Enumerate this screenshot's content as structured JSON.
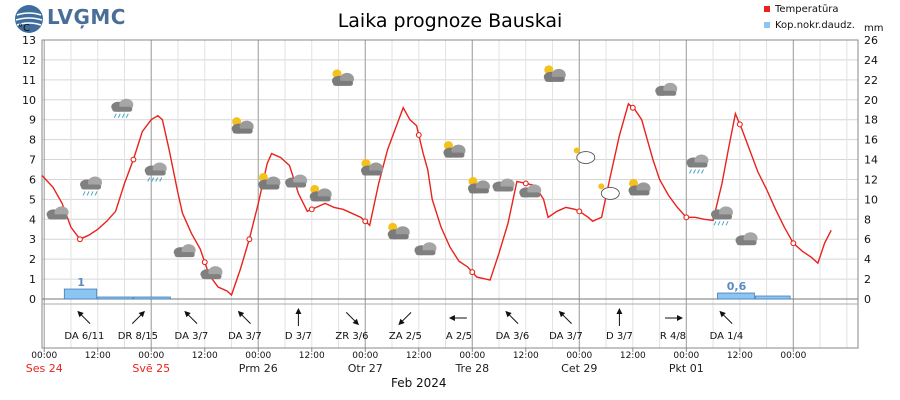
{
  "logo_text": "LVĢMC",
  "chart_data": {
    "type": "line",
    "title": "Laika prognoze Bauskai",
    "left_unit": "°C",
    "right_unit": "mm",
    "y_left": {
      "min": 0,
      "max": 13,
      "ticks": [
        "0",
        "1",
        "2",
        "3",
        "4",
        "5",
        "6",
        "7",
        "8",
        "9",
        "10",
        "11",
        "12",
        "13"
      ]
    },
    "y_right": {
      "min": 0,
      "max": 26,
      "ticks": [
        "0",
        "2",
        "4",
        "6",
        "8",
        "10",
        "12",
        "14",
        "16",
        "18",
        "20",
        "22",
        "24",
        "26"
      ]
    },
    "legend": [
      {
        "name": "Temperatūra",
        "color": "#e8231d"
      },
      {
        "name": "Kop.nokr.daudz.",
        "color": "#8cc4f2"
      }
    ],
    "legend_position": "top-right",
    "grid": true,
    "time_axis": {
      "start_hour": -0.5,
      "end_hour": 182.5,
      "hour_labels": [
        {
          "h": 0,
          "text": "00:00"
        },
        {
          "h": 12,
          "text": "12:00"
        },
        {
          "h": 24,
          "text": "00:00"
        },
        {
          "h": 36,
          "text": "12:00"
        },
        {
          "h": 48,
          "text": "00:00"
        },
        {
          "h": 60,
          "text": "12:00"
        },
        {
          "h": 72,
          "text": "00:00"
        },
        {
          "h": 84,
          "text": "12:00"
        },
        {
          "h": 96,
          "text": "00:00"
        },
        {
          "h": 108,
          "text": "12:00"
        },
        {
          "h": 120,
          "text": "00:00"
        },
        {
          "h": 132,
          "text": "12:00"
        },
        {
          "h": 144,
          "text": "00:00"
        },
        {
          "h": 156,
          "text": "12:00"
        },
        {
          "h": 168,
          "text": "00:00"
        }
      ],
      "day_labels": [
        {
          "h": 0,
          "text": "Ses 24",
          "color": "#e8231d"
        },
        {
          "h": 24,
          "text": "Svē 25",
          "color": "#e8231d"
        },
        {
          "h": 48,
          "text": "Prm 26",
          "color": "#222222"
        },
        {
          "h": 72,
          "text": "Otr 27",
          "color": "#222222"
        },
        {
          "h": 96,
          "text": "Tre 28",
          "color": "#222222"
        },
        {
          "h": 120,
          "text": "Cet 29",
          "color": "#222222"
        },
        {
          "h": 144,
          "text": "Pkt 01",
          "color": "#222222"
        }
      ],
      "month_label": "Feb 2024"
    },
    "temperature": {
      "name": "Temperatūra",
      "points": [
        [
          -0.5,
          6.2
        ],
        [
          2,
          5.6
        ],
        [
          4,
          4.8
        ],
        [
          6,
          3.6
        ],
        [
          8,
          3.0
        ],
        [
          10,
          3.2
        ],
        [
          12,
          3.5
        ],
        [
          14,
          3.9
        ],
        [
          16,
          4.4
        ],
        [
          18,
          5.8
        ],
        [
          20,
          7.0
        ],
        [
          22,
          8.4
        ],
        [
          24,
          9.0
        ],
        [
          25.5,
          9.2
        ],
        [
          26.5,
          9.0
        ],
        [
          28,
          7.5
        ],
        [
          30,
          5.3
        ],
        [
          31,
          4.3
        ],
        [
          33,
          3.3
        ],
        [
          35,
          2.5
        ],
        [
          37,
          1.2
        ],
        [
          39,
          0.6
        ],
        [
          41,
          0.4
        ],
        [
          42,
          0.2
        ],
        [
          44,
          1.5
        ],
        [
          46,
          3.0
        ],
        [
          48,
          4.8
        ],
        [
          50,
          6.8
        ],
        [
          51,
          7.3
        ],
        [
          53,
          7.1
        ],
        [
          55,
          6.7
        ],
        [
          57,
          5.3
        ],
        [
          59,
          4.4
        ],
        [
          61,
          4.6
        ],
        [
          63,
          4.8
        ],
        [
          65,
          4.6
        ],
        [
          67,
          4.5
        ],
        [
          69,
          4.3
        ],
        [
          71,
          4.1
        ],
        [
          72,
          3.9
        ],
        [
          73,
          3.7
        ],
        [
          75,
          5.8
        ],
        [
          77,
          7.5
        ],
        [
          79,
          8.7
        ],
        [
          80.5,
          9.6
        ],
        [
          82,
          9.0
        ],
        [
          83.5,
          8.7
        ],
        [
          85,
          7.3
        ],
        [
          86,
          6.5
        ],
        [
          87,
          5.0
        ],
        [
          89,
          3.6
        ],
        [
          91,
          2.6
        ],
        [
          93,
          1.9
        ],
        [
          95,
          1.6
        ],
        [
          97,
          1.1
        ],
        [
          99,
          1.0
        ],
        [
          100,
          0.95
        ],
        [
          102,
          2.3
        ],
        [
          104,
          3.8
        ],
        [
          106,
          5.9
        ],
        [
          108,
          5.8
        ],
        [
          110,
          5.7
        ],
        [
          112,
          5.0
        ],
        [
          113,
          4.1
        ],
        [
          115,
          4.4
        ],
        [
          117,
          4.6
        ],
        [
          119,
          4.5
        ],
        [
          120,
          4.4
        ],
        [
          122,
          4.1
        ],
        [
          123,
          3.9
        ],
        [
          124,
          4.0
        ],
        [
          125,
          4.1
        ],
        [
          127,
          6.2
        ],
        [
          129,
          8.2
        ],
        [
          131,
          9.8
        ],
        [
          132.5,
          9.5
        ],
        [
          134,
          9.0
        ],
        [
          135.5,
          7.8
        ],
        [
          136.5,
          7.0
        ],
        [
          138,
          6.0
        ],
        [
          140,
          5.2
        ],
        [
          142,
          4.6
        ],
        [
          144,
          4.1
        ],
        [
          146,
          4.1
        ],
        [
          148,
          4.0
        ],
        [
          150,
          3.95
        ],
        [
          152,
          5.8
        ],
        [
          153.5,
          7.6
        ],
        [
          155,
          9.3
        ],
        [
          156.5,
          8.5
        ],
        [
          158,
          7.6
        ],
        [
          160,
          6.4
        ],
        [
          162,
          5.5
        ],
        [
          164,
          4.5
        ],
        [
          166,
          3.6
        ],
        [
          168,
          2.8
        ],
        [
          170,
          2.4
        ],
        [
          172,
          2.1
        ],
        [
          173.5,
          1.8
        ],
        [
          175,
          2.8
        ],
        [
          176.5,
          3.45
        ]
      ],
      "markers": [
        8,
        20,
        36,
        46,
        60,
        72,
        84,
        96,
        108,
        120,
        132,
        144,
        156,
        168
      ],
      "color": "#e8231d"
    },
    "precipitation": {
      "name": "Kop.nokr.daudz.",
      "bars": [
        {
          "h0": 4.5,
          "h1": 12,
          "mm": 1.0,
          "label": "1"
        },
        {
          "h0": 12,
          "h1": 20,
          "mm": 0.2,
          "label": ""
        },
        {
          "h0": 20,
          "h1": 28.5,
          "mm": 0.2,
          "label": ""
        },
        {
          "h0": 151,
          "h1": 159.5,
          "mm": 0.6,
          "label": "0,6"
        },
        {
          "h0": 159.5,
          "h1": 167.5,
          "mm": 0.3,
          "label": ""
        }
      ],
      "color": "#8cc4f2"
    },
    "weather_icons": [
      {
        "h": 3.0,
        "t": 4.3,
        "icon": "cloudy"
      },
      {
        "h": 10.5,
        "t": 5.8,
        "icon": "cloud-rain"
      },
      {
        "h": 17.5,
        "t": 9.7,
        "icon": "cloud-rain"
      },
      {
        "h": 25.0,
        "t": 6.5,
        "icon": "cloud-rain"
      },
      {
        "h": 31.5,
        "t": 2.4,
        "icon": "cloudy"
      },
      {
        "h": 37.5,
        "t": 1.3,
        "icon": "cloudy"
      },
      {
        "h": 44.5,
        "t": 8.6,
        "icon": "partly-sunny"
      },
      {
        "h": 50.5,
        "t": 5.8,
        "icon": "partly-sunny"
      },
      {
        "h": 56.5,
        "t": 5.9,
        "icon": "cloudy"
      },
      {
        "h": 62.0,
        "t": 5.2,
        "icon": "partly-sunny"
      },
      {
        "h": 67.0,
        "t": 11.0,
        "icon": "partly-sunny"
      },
      {
        "h": 73.5,
        "t": 6.5,
        "icon": "partly-sunny"
      },
      {
        "h": 79.5,
        "t": 3.3,
        "icon": "partly-sunny"
      },
      {
        "h": 85.5,
        "t": 2.5,
        "icon": "cloudy"
      },
      {
        "h": 92.0,
        "t": 7.4,
        "icon": "partly-sunny"
      },
      {
        "h": 97.5,
        "t": 5.6,
        "icon": "partly-sunny"
      },
      {
        "h": 103.0,
        "t": 5.7,
        "icon": "cloudy"
      },
      {
        "h": 109.0,
        "t": 5.4,
        "icon": "cloudy"
      },
      {
        "h": 114.5,
        "t": 11.2,
        "icon": "partly-sunny"
      },
      {
        "h": 121.0,
        "t": 7.1,
        "icon": "partly-night"
      },
      {
        "h": 126.5,
        "t": 5.3,
        "icon": "partly-night"
      },
      {
        "h": 133.5,
        "t": 5.5,
        "icon": "partly-sunny"
      },
      {
        "h": 139.5,
        "t": 10.5,
        "icon": "cloudy"
      },
      {
        "h": 146.5,
        "t": 6.9,
        "icon": "cloud-rain"
      },
      {
        "h": 152.0,
        "t": 4.3,
        "icon": "cloud-rain"
      },
      {
        "h": 157.5,
        "t": 3.0,
        "icon": "cloudy"
      }
    ],
    "wind": [
      {
        "h": 9,
        "dir": "DA",
        "speed": "6/11",
        "arrow_deg": 315
      },
      {
        "h": 21,
        "dir": "DR",
        "speed": "8/15",
        "arrow_deg": 45
      },
      {
        "h": 33,
        "dir": "DA",
        "speed": "3/7",
        "arrow_deg": 315
      },
      {
        "h": 45,
        "dir": "DA",
        "speed": "3/7",
        "arrow_deg": 315
      },
      {
        "h": 57,
        "dir": "D",
        "speed": "3/7",
        "arrow_deg": 0
      },
      {
        "h": 69,
        "dir": "ZR",
        "speed": "3/6",
        "arrow_deg": 135
      },
      {
        "h": 81,
        "dir": "ZA",
        "speed": "2/5",
        "arrow_deg": 225
      },
      {
        "h": 93,
        "dir": "A",
        "speed": "2/5",
        "arrow_deg": 270
      },
      {
        "h": 105,
        "dir": "DA",
        "speed": "3/6",
        "arrow_deg": 315
      },
      {
        "h": 117,
        "dir": "DA",
        "speed": "3/7",
        "arrow_deg": 315
      },
      {
        "h": 129,
        "dir": "D",
        "speed": "3/7",
        "arrow_deg": 0
      },
      {
        "h": 141,
        "dir": "R",
        "speed": "4/8",
        "arrow_deg": 90
      },
      {
        "h": 153,
        "dir": "DA",
        "speed": "1/4",
        "arrow_deg": 315
      }
    ]
  }
}
